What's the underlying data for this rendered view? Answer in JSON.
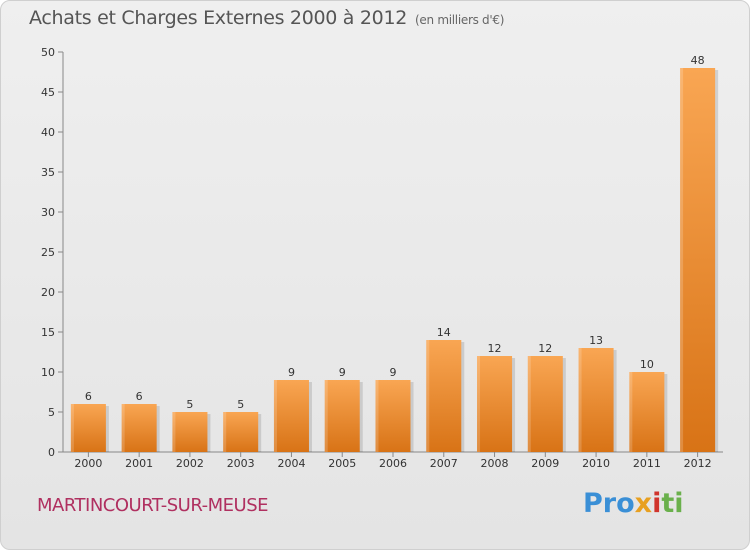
{
  "title": "Achats et Charges Externes 2000 à 2012",
  "subtitle": "(en milliers d'€)",
  "commune": "MARTINCOURT-SUR-MEUSE",
  "logo": {
    "text": "Proxiti",
    "parts": [
      "Pro",
      "x",
      "i",
      "ti"
    ]
  },
  "colors": {
    "bar_top": "#f9a653",
    "bar_bottom": "#d87316",
    "title": "#555555",
    "commune": "#b03060"
  },
  "chart_data": {
    "type": "bar",
    "title": "Achats et Charges Externes 2000 à 2012",
    "subtitle": "(en milliers d'€)",
    "categories": [
      "2000",
      "2001",
      "2002",
      "2003",
      "2004",
      "2005",
      "2006",
      "2007",
      "2008",
      "2009",
      "2010",
      "2011",
      "2012"
    ],
    "values": [
      6,
      6,
      5,
      5,
      9,
      9,
      9,
      14,
      12,
      12,
      13,
      10,
      48
    ],
    "ylim": [
      0,
      50
    ],
    "yticks": [
      0,
      5,
      10,
      15,
      20,
      25,
      30,
      35,
      40,
      45,
      50
    ],
    "grid": false,
    "data_labels": true
  }
}
